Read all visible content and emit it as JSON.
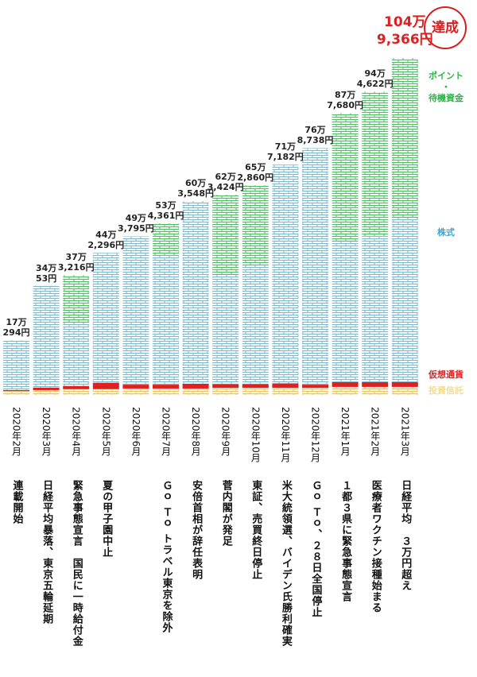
{
  "chart_data": {
    "type": "stacked-bar",
    "annotation": "達成",
    "categories": [
      "2020年2月",
      "2020年3月",
      "2020年4月",
      "2020年5月",
      "2020年6月",
      "2020年7月",
      "2020年8月",
      "2020年9月",
      "2020年10月",
      "2020年11月",
      "2020年12月",
      "2021年1月",
      "2021年2月",
      "2021年3月"
    ],
    "events": [
      "連載開始",
      "日経平均暴落、東京五輪延期",
      "緊急事態宣言　国民に一時給付金",
      "夏の甲子園中止",
      null,
      "Ｇｏ Ｔｏ トラベル東京を除外",
      "安倍首相が辞任表明",
      "菅内閣が発足",
      "東証、売買終日停止",
      "米大統領選、バイデン氏勝利確実",
      "Ｇｏ Ｔｏ、２８日全国停止",
      "１都３県に緊急事態宣言",
      "医療者ワクチン接種始まる",
      "日経平均　３万円超え"
    ],
    "totals": [
      170294,
      340053,
      373216,
      442296,
      493795,
      534361,
      603548,
      623424,
      652860,
      717182,
      768738,
      877680,
      944622,
      1049366
    ],
    "total_labels": [
      "17万\n294円",
      "34万\n53円",
      "37万\n3,216円",
      "44万\n2,296円",
      "49万\n3,795円",
      "53万\n4,361円",
      "60万\n3,548円",
      "62万\n3,424円",
      "65万\n2,860円",
      "71万\n7,182円",
      "76万\n8,738円",
      "87万\n7,680円",
      "94万\n4,622円",
      "104万\n9,366円"
    ],
    "series": [
      {
        "name": "投資信託",
        "color": "#f3dc8c",
        "values": [
          12000,
          15000,
          18000,
          18000,
          20000,
          20000,
          20000,
          22000,
          22000,
          22000,
          22000,
          25000,
          25000,
          25000
        ]
      },
      {
        "name": "仮想通貨",
        "color": "#e02020",
        "values": [
          3000,
          8000,
          10000,
          20000,
          12000,
          12000,
          15000,
          12000,
          12000,
          14000,
          10000,
          15000,
          15000,
          15000
        ]
      },
      {
        "name": "株式",
        "color": "#3aa6d8",
        "values": [
          155294,
          317053,
          195216,
          404296,
          461795,
          402361,
          568548,
          339424,
          368860,
          681182,
          736738,
          437680,
          454622,
          509366
        ]
      },
      {
        "name": "ポイント\n・\n待機資金",
        "color": "#2fb24a",
        "values": [
          0,
          0,
          150000,
          0,
          0,
          100000,
          0,
          250000,
          250000,
          0,
          0,
          400000,
          450000,
          500000
        ]
      }
    ]
  }
}
